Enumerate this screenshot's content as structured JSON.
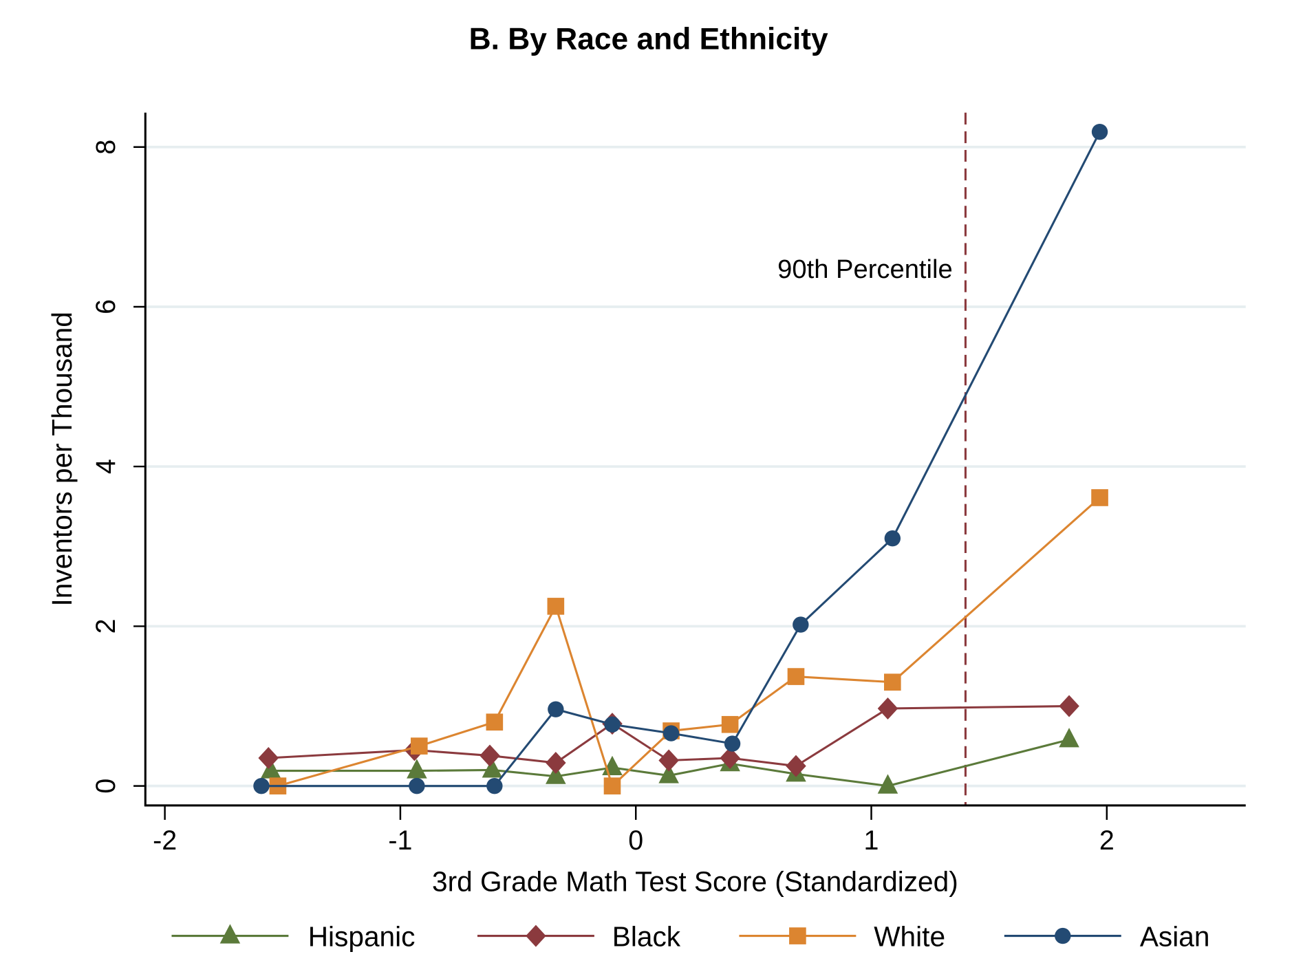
{
  "chart_data": {
    "type": "line",
    "title": "B. By Race and Ethnicity",
    "xlabel": "3rd Grade Math Test Score (Standardized)",
    "ylabel": "Inventors per Thousand",
    "xlim": [
      -2.08,
      2.58
    ],
    "ylim": [
      -0.25,
      8.4
    ],
    "xticks": [
      -2,
      -1,
      0,
      1,
      2
    ],
    "xtick_labels": [
      "-2",
      "-1",
      "0",
      "1",
      "2"
    ],
    "yticks": [
      0,
      2,
      4,
      6,
      8
    ],
    "ytick_labels": [
      "0",
      "2",
      "4",
      "6",
      "8"
    ],
    "grid": "horizontal",
    "legend_position": "bottom",
    "reference_line": {
      "x": 1.4,
      "label": "90th Percentile",
      "color": "#8b3a3e",
      "style": "dashed"
    },
    "series": [
      {
        "name": "Hispanic",
        "color": "#5b7a3a",
        "marker": "triangle",
        "x": [
          -1.55,
          -0.93,
          -0.61,
          -0.34,
          -0.1,
          0.14,
          0.4,
          0.68,
          1.07,
          1.84
        ],
        "y": [
          0.19,
          0.19,
          0.2,
          0.12,
          0.23,
          0.13,
          0.28,
          0.15,
          0.0,
          0.58
        ]
      },
      {
        "name": "Black",
        "color": "#8b3a3e",
        "marker": "diamond",
        "x": [
          -1.56,
          -0.94,
          -0.62,
          -0.34,
          -0.1,
          0.14,
          0.4,
          0.68,
          1.07,
          1.84
        ],
        "y": [
          0.35,
          0.45,
          0.38,
          0.29,
          0.78,
          0.32,
          0.35,
          0.25,
          0.97,
          1.0
        ]
      },
      {
        "name": "White",
        "color": "#dc8530",
        "marker": "square",
        "x": [
          -1.52,
          -0.92,
          -0.6,
          -0.34,
          -0.1,
          0.15,
          0.4,
          0.68,
          1.09,
          1.97
        ],
        "y": [
          0.0,
          0.5,
          0.8,
          2.25,
          0.0,
          0.69,
          0.77,
          1.37,
          1.3,
          3.61
        ]
      },
      {
        "name": "Asian",
        "color": "#234a73",
        "marker": "circle",
        "x": [
          -1.59,
          -0.93,
          -0.6,
          -0.34,
          -0.1,
          0.15,
          0.41,
          0.7,
          1.09,
          1.97
        ],
        "y": [
          0.0,
          0.0,
          0.0,
          0.96,
          0.77,
          0.66,
          0.53,
          2.02,
          3.1,
          8.19
        ]
      }
    ]
  }
}
